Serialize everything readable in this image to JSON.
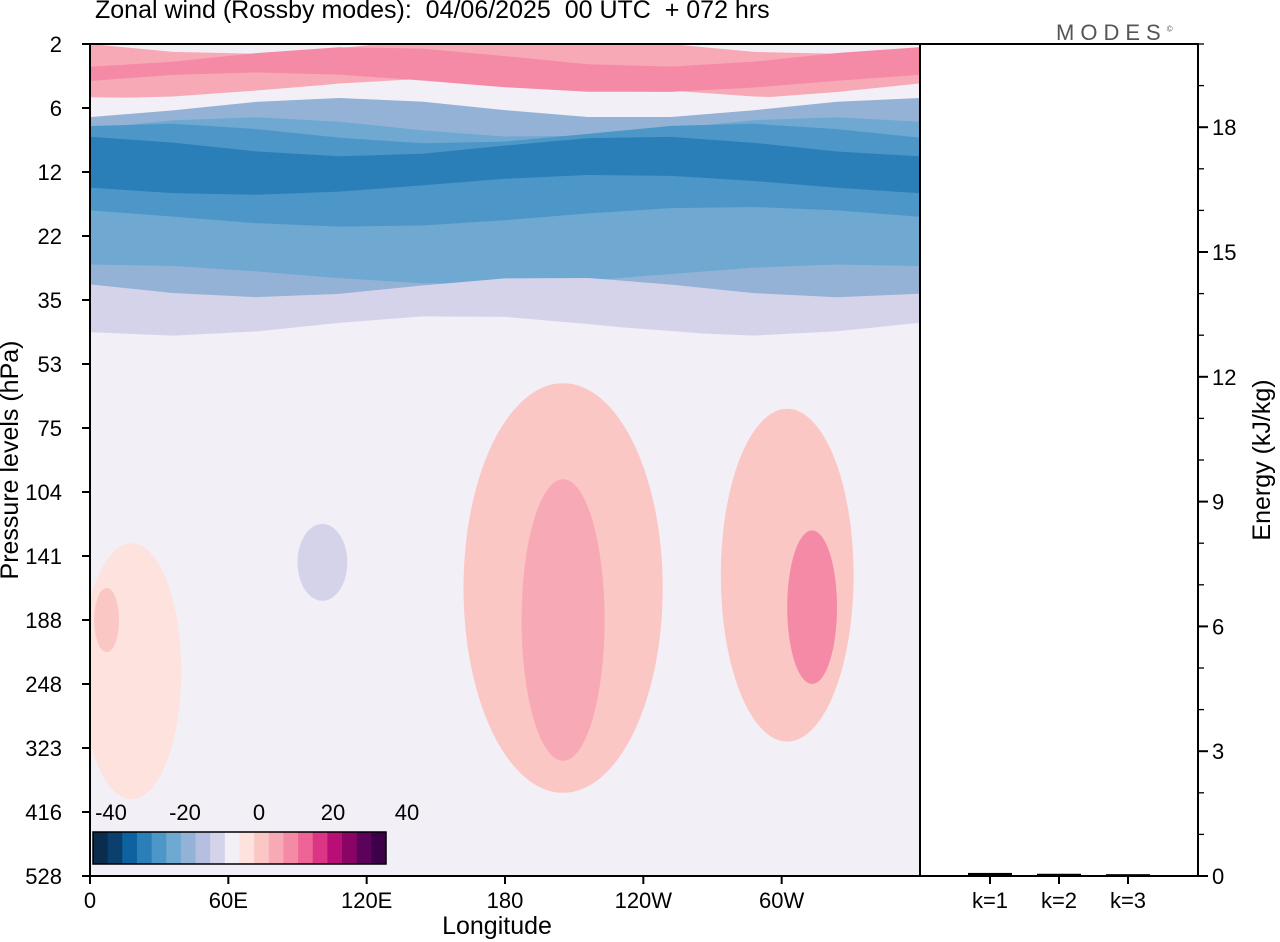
{
  "title": "Zonal wind (Rossby modes):  04/06/2025  00 UTC  + 072 hrs",
  "logo": "MODES",
  "logo_mark": "©",
  "colors": {
    "background_field": "#f3eff6",
    "frame": "#000000",
    "scale": [
      "#0a2d4e",
      "#0b3f6e",
      "#0d63a0",
      "#2a7fb8",
      "#4d97c8",
      "#6fa8d0",
      "#93b2d5",
      "#b5bfdf",
      "#d4d3ea",
      "#f3eff6",
      "#fde2de",
      "#fac7c5",
      "#f7a9b6",
      "#f48aa6",
      "#ee6496",
      "#dd3585",
      "#b70f75",
      "#8a0466",
      "#5c025a",
      "#3d0049"
    ]
  },
  "chart_data": [
    {
      "type": "heatmap",
      "subtype": "filled-contour",
      "variable": "Zonal wind (Rossby modes)",
      "xlabel": "Longitude",
      "ylabel": "Pressure levels (hPa)",
      "x_ticks": [
        "0",
        "60E",
        "120E",
        "180",
        "120W",
        "60W"
      ],
      "y_ticks": [
        "2",
        "6",
        "12",
        "22",
        "35",
        "53",
        "75",
        "104",
        "141",
        "188",
        "248",
        "323",
        "416",
        "528"
      ],
      "colorbar": {
        "labels": [
          "-40",
          "-20",
          "0",
          "20",
          "40"
        ],
        "range": [
          -40,
          40
        ],
        "levels": 20
      },
      "features": [
        {
          "name": "stratospheric easterly jet core",
          "pressure_range_hPa": [
            7,
            14
          ],
          "value": -30
        },
        {
          "name": "easterly layer",
          "pressure_range_hPa": [
            5,
            30
          ],
          "value": -20
        },
        {
          "name": "upper stratosphere westerlies",
          "pressure_range_hPa": [
            2,
            4
          ],
          "value": 12
        },
        {
          "name": "westerly maximum near 160W",
          "pressure_range_hPa": [
            100,
            250
          ],
          "value": 14
        },
        {
          "name": "westerly maximum near 40W",
          "pressure_range_hPa": [
            110,
            190
          ],
          "value": 12
        },
        {
          "name": "weak easterlies over 40E-120E",
          "pressure_range_hPa": [
            100,
            250
          ],
          "value": -6
        }
      ]
    },
    {
      "type": "bar",
      "categories": [
        "k=1",
        "k=2",
        "k=3"
      ],
      "values": [
        0.05,
        0.03,
        0.02
      ],
      "ylabel": "Energy (kJ/kg)",
      "y_ticks": [
        "0",
        "3",
        "6",
        "9",
        "12",
        "15",
        "18"
      ],
      "ylim": [
        0,
        20
      ]
    }
  ]
}
